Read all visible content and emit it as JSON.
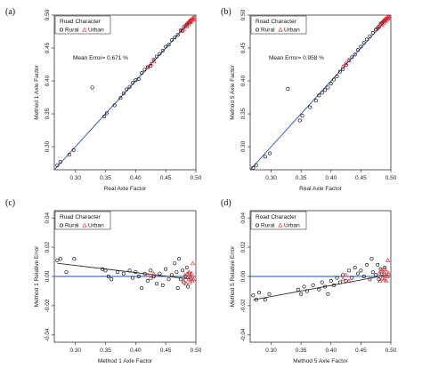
{
  "legend": {
    "title": "Road Character",
    "entries": [
      {
        "name": "Rural",
        "marker": "circle",
        "color": "#000000"
      },
      {
        "name": "Urban",
        "marker": "triangle",
        "color": "#e0202a"
      }
    ]
  },
  "colors": {
    "fit_line": "#1f4fa8",
    "rural": "#000000",
    "urban": "#e0202a",
    "trend": "#333333"
  },
  "chart_data": [
    {
      "panel": "(a)",
      "type": "scatter",
      "xlabel": "Real Axle Factor",
      "ylabel": "Method 1 Axle Factor",
      "xlim": [
        0.265,
        0.5
      ],
      "ylim": [
        0.265,
        0.5
      ],
      "xticks": [
        0.3,
        0.35,
        0.4,
        0.45,
        0.5
      ],
      "xtick_labels": [
        "0.30",
        "0.35",
        "0.40",
        "0.45",
        "0.50"
      ],
      "yticks": [
        0.3,
        0.35,
        0.4,
        0.45,
        0.5
      ],
      "ytick_labels": [
        "0.30",
        "0.35",
        "0.40",
        "0.45",
        "0.50"
      ],
      "annotation": "Mean Error= 0.671 %",
      "reference_line": {
        "x": [
          0.265,
          0.5
        ],
        "y": [
          0.265,
          0.5
        ]
      },
      "series": [
        {
          "name": "Rural",
          "marker": "circle",
          "points": [
            [
              0.27,
              0.272
            ],
            [
              0.275,
              0.277
            ],
            [
              0.29,
              0.288
            ],
            [
              0.297,
              0.295
            ],
            [
              0.328,
              0.39
            ],
            [
              0.348,
              0.346
            ],
            [
              0.352,
              0.351
            ],
            [
              0.365,
              0.363
            ],
            [
              0.375,
              0.374
            ],
            [
              0.38,
              0.381
            ],
            [
              0.385,
              0.387
            ],
            [
              0.39,
              0.391
            ],
            [
              0.395,
              0.397
            ],
            [
              0.4,
              0.401
            ],
            [
              0.405,
              0.403
            ],
            [
              0.41,
              0.412
            ],
            [
              0.415,
              0.417
            ],
            [
              0.42,
              0.421
            ],
            [
              0.425,
              0.423
            ],
            [
              0.43,
              0.432
            ],
            [
              0.435,
              0.437
            ],
            [
              0.44,
              0.441
            ],
            [
              0.445,
              0.446
            ],
            [
              0.45,
              0.452
            ],
            [
              0.455,
              0.455
            ],
            [
              0.46,
              0.462
            ],
            [
              0.465,
              0.466
            ],
            [
              0.47,
              0.47
            ],
            [
              0.475,
              0.477
            ],
            [
              0.478,
              0.476
            ],
            [
              0.48,
              0.482
            ],
            [
              0.483,
              0.484
            ],
            [
              0.485,
              0.486
            ],
            [
              0.487,
              0.488
            ],
            [
              0.49,
              0.49
            ]
          ]
        },
        {
          "name": "Urban",
          "marker": "triangle",
          "points": [
            [
              0.42,
              0.421
            ],
            [
              0.425,
              0.426
            ],
            [
              0.43,
              0.43
            ],
            [
              0.475,
              0.476
            ],
            [
              0.48,
              0.479
            ],
            [
              0.483,
              0.485
            ],
            [
              0.485,
              0.483
            ],
            [
              0.487,
              0.489
            ],
            [
              0.488,
              0.486
            ],
            [
              0.489,
              0.49
            ],
            [
              0.49,
              0.492
            ],
            [
              0.491,
              0.489
            ],
            [
              0.492,
              0.493
            ],
            [
              0.493,
              0.491
            ],
            [
              0.494,
              0.495
            ],
            [
              0.495,
              0.493
            ],
            [
              0.496,
              0.496
            ],
            [
              0.497,
              0.494
            ]
          ]
        }
      ]
    },
    {
      "panel": "(b)",
      "type": "scatter",
      "xlabel": "Real Axle Factor",
      "ylabel": "Method 5 Axle Factor",
      "xlim": [
        0.265,
        0.5
      ],
      "ylim": [
        0.265,
        0.5
      ],
      "xticks": [
        0.3,
        0.35,
        0.4,
        0.45,
        0.5
      ],
      "xtick_labels": [
        "0.30",
        "0.35",
        "0.40",
        "0.45",
        "0.50"
      ],
      "yticks": [
        0.3,
        0.35,
        0.4,
        0.45,
        0.5
      ],
      "ytick_labels": [
        "0.30",
        "0.35",
        "0.40",
        "0.45",
        "0.50"
      ],
      "annotation": "Mean Error= 0.958 %",
      "reference_line": {
        "x": [
          0.265,
          0.5
        ],
        "y": [
          0.265,
          0.5
        ]
      },
      "series": [
        {
          "name": "Rural",
          "marker": "circle",
          "points": [
            [
              0.27,
              0.268
            ],
            [
              0.275,
              0.272
            ],
            [
              0.29,
              0.285
            ],
            [
              0.298,
              0.29
            ],
            [
              0.328,
              0.388
            ],
            [
              0.348,
              0.34
            ],
            [
              0.352,
              0.347
            ],
            [
              0.365,
              0.36
            ],
            [
              0.375,
              0.37
            ],
            [
              0.38,
              0.378
            ],
            [
              0.385,
              0.382
            ],
            [
              0.39,
              0.386
            ],
            [
              0.395,
              0.39
            ],
            [
              0.4,
              0.396
            ],
            [
              0.405,
              0.402
            ],
            [
              0.41,
              0.407
            ],
            [
              0.415,
              0.414
            ],
            [
              0.42,
              0.418
            ],
            [
              0.425,
              0.424
            ],
            [
              0.43,
              0.431
            ],
            [
              0.435,
              0.436
            ],
            [
              0.44,
              0.44
            ],
            [
              0.445,
              0.447
            ],
            [
              0.45,
              0.452
            ],
            [
              0.455,
              0.458
            ],
            [
              0.46,
              0.463
            ],
            [
              0.465,
              0.468
            ],
            [
              0.47,
              0.473
            ],
            [
              0.475,
              0.478
            ],
            [
              0.478,
              0.48
            ],
            [
              0.48,
              0.483
            ],
            [
              0.483,
              0.487
            ],
            [
              0.485,
              0.488
            ],
            [
              0.487,
              0.49
            ],
            [
              0.49,
              0.492
            ]
          ]
        },
        {
          "name": "Urban",
          "marker": "triangle",
          "points": [
            [
              0.42,
              0.422
            ],
            [
              0.425,
              0.427
            ],
            [
              0.43,
              0.432
            ],
            [
              0.475,
              0.478
            ],
            [
              0.48,
              0.482
            ],
            [
              0.483,
              0.487
            ],
            [
              0.485,
              0.485
            ],
            [
              0.487,
              0.491
            ],
            [
              0.488,
              0.488
            ],
            [
              0.489,
              0.492
            ],
            [
              0.49,
              0.494
            ],
            [
              0.491,
              0.491
            ],
            [
              0.492,
              0.495
            ],
            [
              0.493,
              0.493
            ],
            [
              0.494,
              0.497
            ],
            [
              0.495,
              0.495
            ],
            [
              0.496,
              0.498
            ],
            [
              0.497,
              0.496
            ]
          ]
        }
      ]
    },
    {
      "panel": "(c)",
      "type": "scatter",
      "xlabel": "Method 1 Axle Factor",
      "ylabel": "Method 1 Relative Error",
      "xlim": [
        0.265,
        0.5
      ],
      "ylim": [
        -0.045,
        0.045
      ],
      "xticks": [
        0.3,
        0.35,
        0.4,
        0.45,
        0.5
      ],
      "xtick_labels": [
        "0.30",
        "0.35",
        "0.40",
        "0.45",
        "0.50"
      ],
      "yticks": [
        -0.04,
        -0.02,
        0.0,
        0.02,
        0.04
      ],
      "ytick_labels": [
        "-0.04",
        "-0.02",
        "0.00",
        "0.02",
        "0.04"
      ],
      "reference_line": {
        "x": [
          0.265,
          0.5
        ],
        "y": [
          0.0,
          0.0
        ]
      },
      "trend_line": {
        "x": [
          0.27,
          0.495
        ],
        "y": [
          0.009,
          -0.002
        ]
      },
      "series": [
        {
          "name": "Rural",
          "marker": "circle",
          "points": [
            [
              0.27,
              0.011
            ],
            [
              0.275,
              0.012
            ],
            [
              0.285,
              0.003
            ],
            [
              0.298,
              0.012
            ],
            [
              0.345,
              0.005
            ],
            [
              0.35,
              0.004
            ],
            [
              0.355,
              0.0
            ],
            [
              0.36,
              -0.002
            ],
            [
              0.37,
              0.003
            ],
            [
              0.38,
              0.002
            ],
            [
              0.39,
              0.004
            ],
            [
              0.395,
              -0.001
            ],
            [
              0.4,
              0.003
            ],
            [
              0.405,
              0.0
            ],
            [
              0.41,
              -0.008
            ],
            [
              0.415,
              0.002
            ],
            [
              0.42,
              -0.003
            ],
            [
              0.425,
              0.004
            ],
            [
              0.43,
              0.0
            ],
            [
              0.435,
              -0.005
            ],
            [
              0.44,
              0.002
            ],
            [
              0.445,
              -0.006
            ],
            [
              0.45,
              0.005
            ],
            [
              0.455,
              -0.002
            ],
            [
              0.46,
              0.001
            ],
            [
              0.465,
              0.009
            ],
            [
              0.468,
              0.003
            ],
            [
              0.47,
              -0.008
            ],
            [
              0.472,
              0.012
            ],
            [
              0.475,
              -0.002
            ],
            [
              0.478,
              0.004
            ],
            [
              0.48,
              -0.004
            ],
            [
              0.483,
              0.0
            ],
            [
              0.485,
              0.006
            ],
            [
              0.487,
              -0.007
            ],
            [
              0.49,
              0.002
            ]
          ]
        },
        {
          "name": "Urban",
          "marker": "triangle",
          "points": [
            [
              0.42,
              0.001
            ],
            [
              0.425,
              -0.001
            ],
            [
              0.43,
              0.002
            ],
            [
              0.48,
              -0.003
            ],
            [
              0.482,
              0.001
            ],
            [
              0.484,
              -0.005
            ],
            [
              0.486,
              0.002
            ],
            [
              0.488,
              -0.002
            ],
            [
              0.489,
              0.003
            ],
            [
              0.49,
              -0.004
            ],
            [
              0.491,
              0.0
            ],
            [
              0.492,
              -0.001
            ],
            [
              0.493,
              0.002
            ],
            [
              0.494,
              -0.003
            ],
            [
              0.495,
              0.009
            ],
            [
              0.496,
              -0.002
            ]
          ]
        }
      ]
    },
    {
      "panel": "(d)",
      "type": "scatter",
      "xlabel": "Method 5 Axle Factor",
      "ylabel": "Method 5 Relative Error",
      "xlim": [
        0.265,
        0.5
      ],
      "ylim": [
        -0.045,
        0.045
      ],
      "xticks": [
        0.3,
        0.35,
        0.4,
        0.45,
        0.5
      ],
      "xtick_labels": [
        "0.30",
        "0.35",
        "0.40",
        "0.45",
        "0.50"
      ],
      "yticks": [
        -0.04,
        -0.02,
        0.0,
        0.02,
        0.04
      ],
      "ytick_labels": [
        "-0.04",
        "-0.02",
        "0.00",
        "0.02",
        "0.04"
      ],
      "reference_line": {
        "x": [
          0.265,
          0.5
        ],
        "y": [
          0.0,
          0.0
        ]
      },
      "trend_line": {
        "x": [
          0.27,
          0.495
        ],
        "y": [
          -0.016,
          0.001
        ]
      },
      "series": [
        {
          "name": "Rural",
          "marker": "circle",
          "points": [
            [
              0.27,
              -0.013
            ],
            [
              0.275,
              -0.016
            ],
            [
              0.28,
              -0.011
            ],
            [
              0.29,
              -0.016
            ],
            [
              0.297,
              -0.012
            ],
            [
              0.345,
              -0.009
            ],
            [
              0.35,
              -0.012
            ],
            [
              0.355,
              -0.007
            ],
            [
              0.36,
              -0.01
            ],
            [
              0.37,
              -0.006
            ],
            [
              0.38,
              -0.009
            ],
            [
              0.385,
              -0.004
            ],
            [
              0.39,
              -0.007
            ],
            [
              0.395,
              -0.012
            ],
            [
              0.4,
              -0.003
            ],
            [
              0.405,
              -0.006
            ],
            [
              0.41,
              -0.001
            ],
            [
              0.415,
              -0.004
            ],
            [
              0.42,
              0.001
            ],
            [
              0.425,
              -0.003
            ],
            [
              0.43,
              0.004
            ],
            [
              0.435,
              -0.001
            ],
            [
              0.44,
              0.006
            ],
            [
              0.445,
              0.002
            ],
            [
              0.45,
              0.004
            ],
            [
              0.455,
              0.0
            ],
            [
              0.46,
              0.008
            ],
            [
              0.465,
              -0.002
            ],
            [
              0.468,
              0.012
            ],
            [
              0.47,
              0.003
            ],
            [
              0.475,
              0.001
            ],
            [
              0.478,
              0.008
            ],
            [
              0.48,
              -0.002
            ],
            [
              0.483,
              0.005
            ],
            [
              0.485,
              0.002
            ],
            [
              0.49,
              0.006
            ]
          ]
        },
        {
          "name": "Urban",
          "marker": "triangle",
          "points": [
            [
              0.42,
              -0.002
            ],
            [
              0.425,
              0.001
            ],
            [
              0.43,
              -0.003
            ],
            [
              0.48,
              0.002
            ],
            [
              0.482,
              -0.003
            ],
            [
              0.484,
              0.004
            ],
            [
              0.486,
              -0.001
            ],
            [
              0.488,
              0.003
            ],
            [
              0.489,
              -0.002
            ],
            [
              0.49,
              0.005
            ],
            [
              0.491,
              0.001
            ],
            [
              0.492,
              -0.003
            ],
            [
              0.493,
              0.003
            ],
            [
              0.494,
              0.0
            ],
            [
              0.495,
              0.011
            ],
            [
              0.496,
              0.002
            ]
          ]
        }
      ]
    }
  ]
}
